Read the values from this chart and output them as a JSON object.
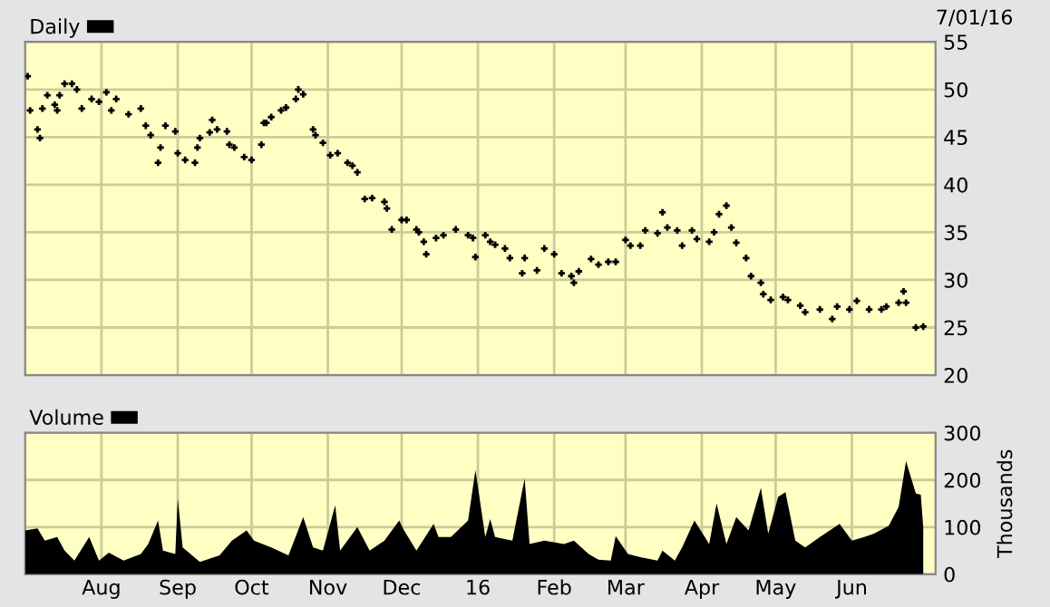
{
  "chart_data": [
    {
      "type": "scatter",
      "legend": "top left",
      "grid": true,
      "marker": "cross",
      "tick_labels": "y",
      "annotations": [
        "7/01/16"
      ],
      "xlim": [
        "2015-07-01",
        "2016-07-05"
      ],
      "xticks": [
        {
          "value": "2015-08-01",
          "label": null
        },
        {
          "value": "2015-09-01",
          "label": null
        },
        {
          "value": "2015-10-01",
          "label": null
        },
        {
          "value": "2015-11-01",
          "label": null
        },
        {
          "value": "2015-12-01",
          "label": null
        },
        {
          "value": "2016-01-01",
          "label": null
        },
        {
          "value": "2016-02-01",
          "label": null
        },
        {
          "value": "2016-03-01",
          "label": null
        },
        {
          "value": "2016-04-01",
          "label": null
        },
        {
          "value": "2016-05-01",
          "label": null
        },
        {
          "value": "2016-06-01",
          "label": null
        }
      ],
      "ylim": [
        20,
        55
      ],
      "yticks": [
        20,
        25,
        30,
        35,
        40,
        45,
        50,
        55
      ],
      "x": [
        "2015-07-02",
        "2015-07-03",
        "2015-07-06",
        "2015-07-07",
        "2015-07-08",
        "2015-07-10",
        "2015-07-13",
        "2015-07-14",
        "2015-07-15",
        "2015-07-17",
        "2015-07-20",
        "2015-07-22",
        "2015-07-24",
        "2015-07-28",
        "2015-07-31",
        "2015-08-03",
        "2015-08-05",
        "2015-08-07",
        "2015-08-12",
        "2015-08-17",
        "2015-08-19",
        "2015-08-21",
        "2015-08-24",
        "2015-08-25",
        "2015-08-27",
        "2015-08-31",
        "2015-09-01",
        "2015-09-04",
        "2015-09-08",
        "2015-09-09",
        "2015-09-10",
        "2015-09-14",
        "2015-09-15",
        "2015-09-17",
        "2015-09-21",
        "2015-09-22",
        "2015-09-24",
        "2015-09-28",
        "2015-10-01",
        "2015-10-05",
        "2015-10-06",
        "2015-10-07",
        "2015-10-09",
        "2015-10-13",
        "2015-10-15",
        "2015-10-19",
        "2015-10-20",
        "2015-10-22",
        "2015-10-26",
        "2015-10-27",
        "2015-10-30",
        "2015-11-02",
        "2015-11-05",
        "2015-11-09",
        "2015-11-11",
        "2015-11-13",
        "2015-11-16",
        "2015-11-19",
        "2015-11-24",
        "2015-11-25",
        "2015-11-27",
        "2015-12-01",
        "2015-12-03",
        "2015-12-07",
        "2015-12-08",
        "2015-12-10",
        "2015-12-11",
        "2015-12-15",
        "2015-12-18",
        "2015-12-23",
        "2015-12-28",
        "2015-12-30",
        "2015-12-31",
        "2016-01-04",
        "2016-01-06",
        "2016-01-08",
        "2016-01-12",
        "2016-01-14",
        "2016-01-19",
        "2016-01-20",
        "2016-01-25",
        "2016-01-28",
        "2016-02-01",
        "2016-02-04",
        "2016-02-08",
        "2016-02-09",
        "2016-02-11",
        "2016-02-16",
        "2016-02-19",
        "2016-02-23",
        "2016-02-26",
        "2016-03-01",
        "2016-03-03",
        "2016-03-07",
        "2016-03-09",
        "2016-03-14",
        "2016-03-16",
        "2016-03-18",
        "2016-03-22",
        "2016-03-24",
        "2016-03-28",
        "2016-03-30",
        "2016-04-04",
        "2016-04-06",
        "2016-04-08",
        "2016-04-11",
        "2016-04-13",
        "2016-04-15",
        "2016-04-19",
        "2016-04-21",
        "2016-04-25",
        "2016-04-26",
        "2016-04-29",
        "2016-05-04",
        "2016-05-06",
        "2016-05-11",
        "2016-05-13",
        "2016-05-19",
        "2016-05-24",
        "2016-05-26",
        "2016-05-31",
        "2016-06-03",
        "2016-06-08",
        "2016-06-13",
        "2016-06-15",
        "2016-06-20",
        "2016-06-22",
        "2016-06-23",
        "2016-06-27",
        "2016-06-30"
      ],
      "series": [
        {
          "name": "Daily",
          "color": "#000000",
          "values": [
            51.4,
            47.8,
            45.8,
            44.9,
            48,
            49.4,
            48.4,
            47.8,
            49.4,
            50.6,
            50.6,
            50,
            48,
            49,
            48.7,
            49.7,
            47.8,
            49,
            47.4,
            48,
            46.2,
            45.2,
            42.3,
            43.9,
            46.2,
            45.6,
            43.3,
            42.6,
            42.3,
            43.9,
            44.9,
            45.5,
            46.8,
            45.8,
            45.6,
            44.2,
            43.9,
            42.9,
            42.6,
            44.2,
            46.5,
            46.5,
            47.1,
            47.8,
            48.1,
            49,
            50,
            49.5,
            45.8,
            45.2,
            44.4,
            43.1,
            43.3,
            42.3,
            42,
            41.3,
            38.5,
            38.6,
            38.2,
            37.5,
            35.3,
            36.3,
            36.3,
            35.3,
            35,
            34,
            32.7,
            34.4,
            34.7,
            35.3,
            34.7,
            34.4,
            32.4,
            34.7,
            34,
            33.7,
            33.3,
            32.3,
            30.7,
            32.3,
            31,
            33.3,
            32.7,
            30.7,
            30.4,
            29.7,
            30.9,
            32.2,
            31.6,
            31.9,
            31.9,
            34.2,
            33.6,
            33.6,
            35.2,
            34.9,
            37.1,
            35.5,
            35.2,
            33.6,
            35.2,
            34.3,
            34,
            35,
            36.9,
            37.8,
            35.5,
            33.9,
            32.3,
            30.4,
            29.7,
            28.5,
            27.9,
            28.2,
            27.9,
            27.3,
            26.6,
            26.9,
            25.9,
            27.2,
            26.9,
            27.8,
            26.9,
            26.9,
            27.2,
            27.6,
            28.8,
            27.6,
            25,
            25.1
          ]
        }
      ]
    },
    {
      "type": "area",
      "legend": "top left",
      "grid": true,
      "y2label": "Thousands",
      "xlim": [
        "2015-07-01",
        "2016-07-05"
      ],
      "xticks": [
        {
          "value": "2015-08-01",
          "label": "Aug"
        },
        {
          "value": "2015-09-01",
          "label": "Sep"
        },
        {
          "value": "2015-10-01",
          "label": "Oct"
        },
        {
          "value": "2015-11-01",
          "label": "Nov"
        },
        {
          "value": "2015-12-01",
          "label": "Dec"
        },
        {
          "value": "2016-01-01",
          "label": "16"
        },
        {
          "value": "2016-02-01",
          "label": "Feb"
        },
        {
          "value": "2016-03-01",
          "label": "Mar"
        },
        {
          "value": "2016-04-01",
          "label": "Apr"
        },
        {
          "value": "2016-05-01",
          "label": "May"
        },
        {
          "value": "2016-06-01",
          "label": "Jun"
        }
      ],
      "ylim": [
        0,
        300
      ],
      "yticks": [
        0,
        100,
        200,
        300
      ],
      "x": [
        "2015-07-01",
        "2015-07-06",
        "2015-07-09",
        "2015-07-14",
        "2015-07-17",
        "2015-07-21",
        "2015-07-27",
        "2015-07-31",
        "2015-08-04",
        "2015-08-10",
        "2015-08-17",
        "2015-08-20",
        "2015-08-24",
        "2015-08-26",
        "2015-08-31",
        "2015-09-01",
        "2015-09-03",
        "2015-09-10",
        "2015-09-18",
        "2015-09-23",
        "2015-09-29",
        "2015-10-02",
        "2015-10-09",
        "2015-10-16",
        "2015-10-22",
        "2015-10-26",
        "2015-10-30",
        "2015-11-04",
        "2015-11-06",
        "2015-11-13",
        "2015-11-18",
        "2015-11-24",
        "2015-11-30",
        "2015-12-02",
        "2015-12-07",
        "2015-12-14",
        "2015-12-16",
        "2015-12-21",
        "2015-12-28",
        "2015-12-31",
        "2016-01-04",
        "2016-01-06",
        "2016-01-08",
        "2016-01-15",
        "2016-01-20",
        "2016-01-22",
        "2016-01-28",
        "2016-02-05",
        "2016-02-09",
        "2016-02-15",
        "2016-02-19",
        "2016-02-24",
        "2016-02-26",
        "2016-03-02",
        "2016-03-07",
        "2016-03-14",
        "2016-03-16",
        "2016-03-21",
        "2016-03-24",
        "2016-03-29",
        "2016-04-04",
        "2016-04-07",
        "2016-04-11",
        "2016-04-15",
        "2016-04-20",
        "2016-04-25",
        "2016-04-28",
        "2016-05-02",
        "2016-05-05",
        "2016-05-09",
        "2016-05-13",
        "2016-05-19",
        "2016-05-23",
        "2016-05-27",
        "2016-06-01",
        "2016-06-06",
        "2016-06-10",
        "2016-06-16",
        "2016-06-20",
        "2016-06-23",
        "2016-06-27",
        "2016-06-29",
        "2016-06-30"
      ],
      "series": [
        {
          "name": "Volume",
          "color": "#000000",
          "values": [
            93,
            97,
            71,
            79,
            50,
            29,
            79,
            29,
            46,
            29,
            43,
            64,
            114,
            50,
            43,
            161,
            57,
            26,
            40,
            71,
            93,
            71,
            57,
            40,
            121,
            57,
            50,
            146,
            50,
            100,
            50,
            71,
            114,
            93,
            50,
            107,
            79,
            79,
            114,
            221,
            79,
            117,
            79,
            71,
            203,
            64,
            71,
            64,
            71,
            43,
            31,
            29,
            81,
            43,
            36,
            29,
            50,
            29,
            57,
            114,
            64,
            150,
            64,
            121,
            93,
            183,
            86,
            164,
            174,
            71,
            57,
            79,
            93,
            107,
            71,
            79,
            86,
            103,
            143,
            240,
            171,
            169,
            100
          ]
        }
      ]
    }
  ]
}
